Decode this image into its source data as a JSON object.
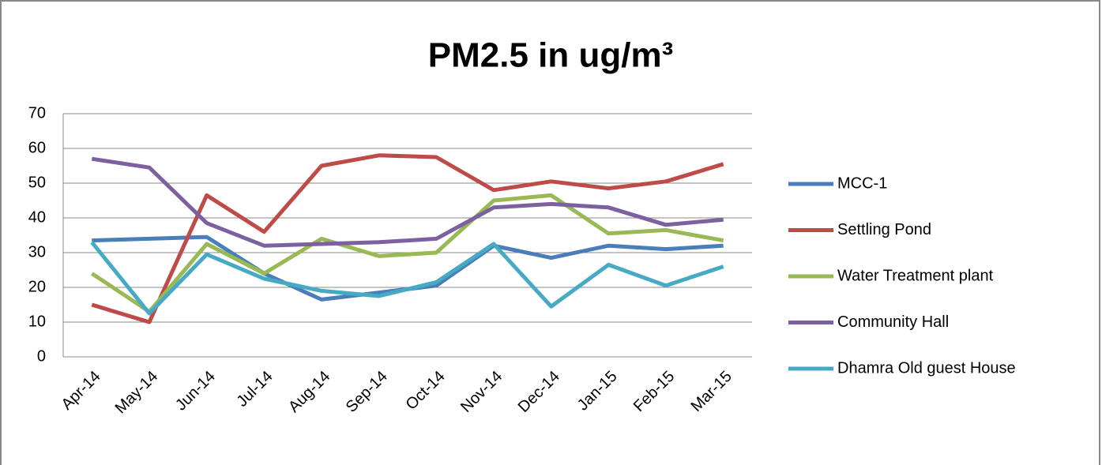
{
  "chart_data": {
    "type": "line",
    "title": "PM2.5 in ug/m³",
    "categories": [
      "Apr-14",
      "May-14",
      "Jun-14",
      "Jul-14",
      "Aug-14",
      "Sep-14",
      "Oct-14",
      "Nov-14",
      "Dec-14",
      "Jan-15",
      "Feb-15",
      "Mar-15"
    ],
    "series": [
      {
        "name": "MCC-1",
        "color": "#4a7ebb",
        "values": [
          33.5,
          34,
          34.5,
          24,
          16.5,
          18.5,
          20.5,
          32,
          28.5,
          32,
          31,
          32
        ]
      },
      {
        "name": "Settling Pond",
        "color": "#be4b48",
        "values": [
          15,
          10,
          46.5,
          36,
          55,
          58,
          57.5,
          48,
          50.5,
          48.5,
          50.5,
          55.5
        ]
      },
      {
        "name": "Water Treatment plant",
        "color": "#98b954",
        "values": [
          24,
          13,
          32.5,
          24,
          34,
          29,
          30,
          45,
          46.5,
          35.5,
          36.5,
          33.5
        ]
      },
      {
        "name": "Community Hall",
        "color": "#7d60a0",
        "values": [
          57,
          54.5,
          38.5,
          32,
          32.5,
          33,
          34,
          43,
          44,
          43,
          38,
          39.5
        ]
      },
      {
        "name": "Dhamra Old guest House",
        "color": "#46aac5",
        "values": [
          33,
          12.5,
          29.5,
          22.5,
          19,
          17.5,
          21.5,
          32.5,
          14.5,
          26.5,
          20.5,
          26
        ]
      }
    ],
    "ylim": [
      0,
      70
    ],
    "yticks": [
      0,
      10,
      20,
      30,
      40,
      50,
      60,
      70
    ],
    "grid": true,
    "legend": "right"
  }
}
